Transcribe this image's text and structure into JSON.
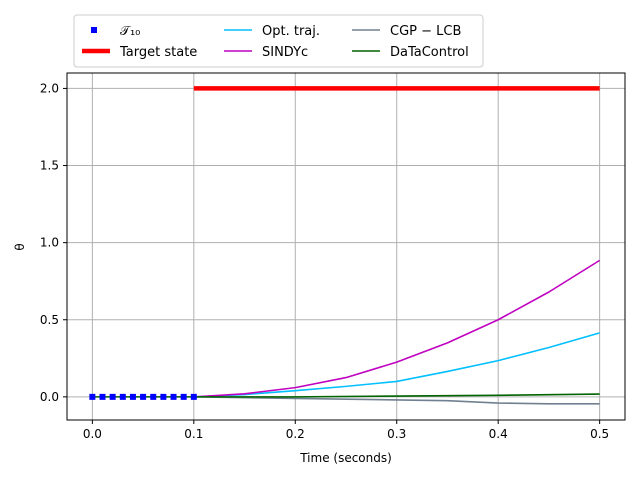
{
  "chart_data": {
    "type": "line",
    "xlabel": "Time (seconds)",
    "ylabel": "θ",
    "xlim": [
      -0.025,
      0.525
    ],
    "ylim": [
      -0.15,
      2.1
    ],
    "xticks": [
      0.0,
      0.1,
      0.2,
      0.3,
      0.4,
      0.5
    ],
    "xtick_labels": [
      "0.0",
      "0.1",
      "0.2",
      "0.3",
      "0.4",
      "0.5"
    ],
    "yticks": [
      0.0,
      0.5,
      1.0,
      1.5,
      2.0
    ],
    "ytick_labels": [
      "0.0",
      "0.5",
      "1.0",
      "1.5",
      "2.0"
    ],
    "grid": true,
    "legend": {
      "placement": "top-center, above plot",
      "columns": 3
    },
    "series": [
      {
        "name": "𝒯₁₀",
        "style": "markers",
        "color": "#0000ff",
        "x": [
          0.0,
          0.01,
          0.02,
          0.03,
          0.04,
          0.05,
          0.06,
          0.07,
          0.08,
          0.09,
          0.1
        ],
        "y": [
          0,
          0,
          0,
          0,
          0,
          0,
          0,
          0,
          0,
          0,
          0
        ]
      },
      {
        "name": "Target state",
        "style": "thick-line",
        "color": "#ff0000",
        "x": [
          0.1,
          0.5
        ],
        "y": [
          2.0,
          2.0
        ]
      },
      {
        "name": "Opt. traj.",
        "style": "line",
        "color": "#00bfff",
        "x": [
          0.1,
          0.15,
          0.2,
          0.25,
          0.3,
          0.35,
          0.4,
          0.45,
          0.5
        ],
        "y": [
          0.0,
          0.015,
          0.04,
          0.068,
          0.1,
          0.165,
          0.235,
          0.32,
          0.415
        ]
      },
      {
        "name": "SINDYc",
        "style": "line",
        "color": "#c000c0",
        "x": [
          0.1,
          0.15,
          0.2,
          0.25,
          0.3,
          0.35,
          0.4,
          0.45,
          0.5
        ],
        "y": [
          0.0,
          0.02,
          0.06,
          0.125,
          0.225,
          0.35,
          0.5,
          0.68,
          0.885
        ]
      },
      {
        "name": "CGP − LCB",
        "style": "line",
        "color": "#708090",
        "x": [
          0.1,
          0.2,
          0.3,
          0.35,
          0.4,
          0.45,
          0.5
        ],
        "y": [
          0.0,
          -0.01,
          -0.02,
          -0.025,
          -0.04,
          -0.045,
          -0.045
        ]
      },
      {
        "name": "DaTaControl",
        "style": "line",
        "color": "#006400",
        "x": [
          0.0,
          0.1,
          0.2,
          0.3,
          0.4,
          0.5
        ],
        "y": [
          0.0,
          0.0,
          0.0,
          0.005,
          0.01,
          0.018
        ]
      }
    ]
  }
}
